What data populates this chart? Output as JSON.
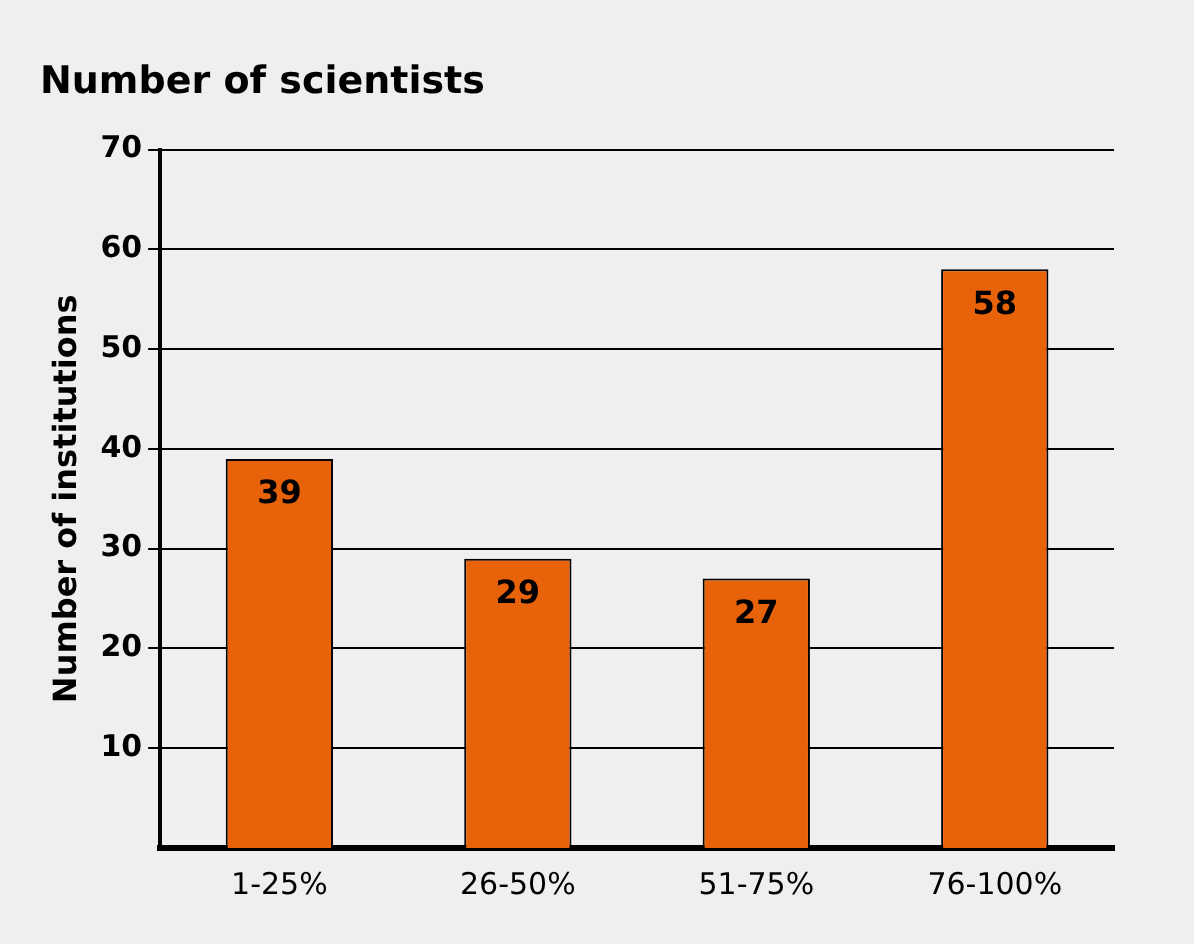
{
  "chart_data": {
    "type": "bar",
    "title": "Number of scientists",
    "ylabel": "Number of institutions",
    "categories": [
      "1-25%",
      "26-50%",
      "51-75%",
      "76-100%"
    ],
    "values": [
      39,
      29,
      27,
      58
    ],
    "color": "#e8620a",
    "ylim": [
      0,
      70
    ],
    "yticks": [
      {
        "value": 0,
        "label": null
      },
      10,
      20,
      30,
      40,
      50,
      60,
      70
    ],
    "grid": "y",
    "legend": false,
    "data_labels": true
  }
}
